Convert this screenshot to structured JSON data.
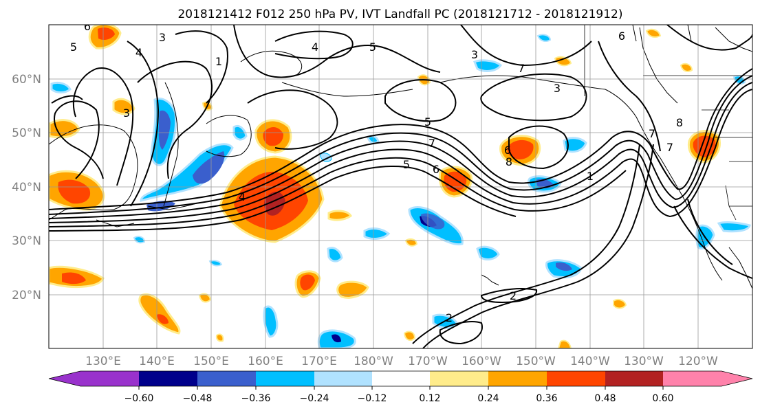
{
  "title": "2018121412 F012 250 hPa PV, IVT Landfall PC (2018121712 - 2018121912)",
  "map": {
    "lat_labels": [
      "60°N",
      "50°N",
      "40°N",
      "30°N",
      "20°N"
    ],
    "lon_labels": [
      "130°E",
      "140°E",
      "150°E",
      "160°E",
      "170°E",
      "180°W",
      "170°W",
      "160°W",
      "150°W",
      "140°W",
      "130°W",
      "120°W"
    ],
    "extent": {
      "lon_min": 120,
      "lon_max": 250,
      "lat_min": 10,
      "lat_max": 70
    },
    "contour_labels": [
      "5",
      "4",
      "3",
      "1",
      "4",
      "5",
      "7",
      "3",
      "5",
      "7",
      "6",
      "5",
      "6",
      "8",
      "7",
      "3",
      "1",
      "7",
      "8",
      "6",
      "2",
      "2",
      "4",
      "3",
      "6"
    ]
  },
  "colorbar": {
    "ticks": [
      "−0.60",
      "−0.48",
      "−0.36",
      "−0.24",
      "−0.12",
      "0.12",
      "0.24",
      "0.36",
      "0.48",
      "0.60"
    ],
    "colors": [
      "#9932cc",
      "#00008b",
      "#3a5fcd",
      "#00bfff",
      "#b0e2ff",
      "#ffffff",
      "#ffec8b",
      "#ffa500",
      "#ff4500",
      "#b22222",
      "#ff82ab"
    ]
  }
}
